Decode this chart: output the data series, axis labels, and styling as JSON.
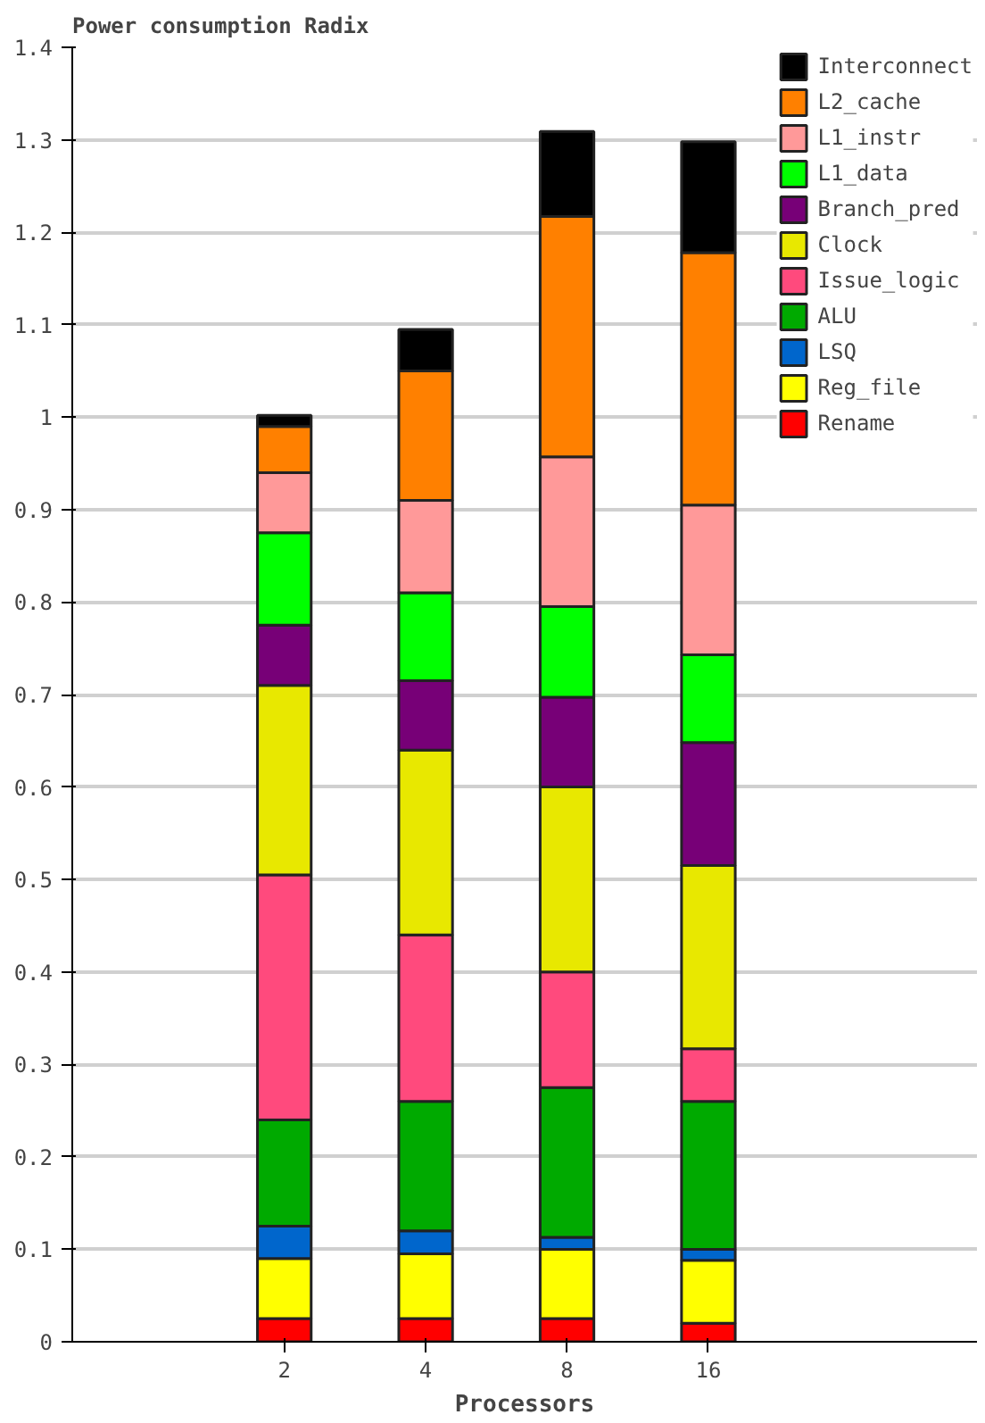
{
  "chart_data": {
    "type": "bar",
    "stacked": true,
    "title": "Power consumption Radix",
    "xlabel": "Processors",
    "categories": [
      null,
      "2",
      "4",
      "8",
      "16"
    ],
    "ylim": [
      0,
      1.4
    ],
    "yticks": [
      0,
      0.1,
      0.2,
      0.3,
      0.4,
      0.5,
      0.6,
      0.7,
      0.8,
      0.9,
      1,
      1.1,
      1.2,
      1.3,
      1.4
    ],
    "grid": "y",
    "legend": "top right",
    "series": [
      {
        "name": "Rename",
        "color": "#ff0000",
        "values": [
          null,
          0.025,
          0.025,
          0.025,
          0.02
        ]
      },
      {
        "name": "Reg_file",
        "color": "#ffff00",
        "values": [
          null,
          0.065,
          0.07,
          0.075,
          0.068
        ]
      },
      {
        "name": "LSQ",
        "color": "#0066cc",
        "values": [
          null,
          0.035,
          0.025,
          0.013,
          0.012
        ]
      },
      {
        "name": "ALU",
        "color": "#00aa00",
        "values": [
          null,
          0.115,
          0.14,
          0.162,
          0.16
        ]
      },
      {
        "name": "Issue_logic",
        "color": "#ff4a7d",
        "values": [
          null,
          0.265,
          0.18,
          0.125,
          0.057
        ]
      },
      {
        "name": "Clock",
        "color": "#e8e800",
        "values": [
          null,
          0.205,
          0.2,
          0.2,
          0.198
        ]
      },
      {
        "name": "Branch_pred",
        "color": "#770077",
        "values": [
          null,
          0.065,
          0.075,
          0.097,
          0.133
        ]
      },
      {
        "name": "L1_data",
        "color": "#00ff00",
        "values": [
          null,
          0.1,
          0.095,
          0.098,
          0.095
        ]
      },
      {
        "name": "L1_instr",
        "color": "#ff9999",
        "values": [
          null,
          0.065,
          0.1,
          0.162,
          0.162
        ]
      },
      {
        "name": "L2_cache",
        "color": "#ff8000",
        "values": [
          null,
          0.05,
          0.14,
          0.26,
          0.273
        ]
      },
      {
        "name": "Interconnect",
        "color": "#000000",
        "values": [
          null,
          0.012,
          0.045,
          0.092,
          0.12
        ]
      }
    ]
  }
}
